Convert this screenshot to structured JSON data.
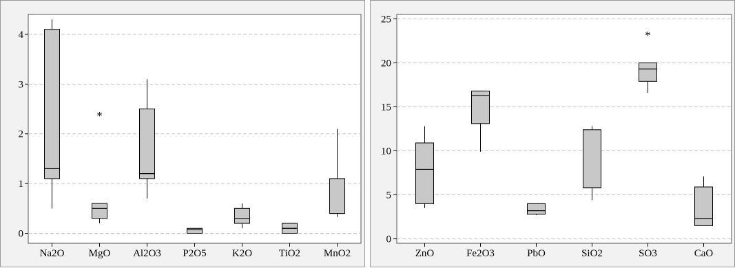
{
  "chart_data": [
    {
      "type": "boxplot",
      "title": "",
      "xlabel": "",
      "ylabel": "",
      "ylim": [
        -0.2,
        4.4
      ],
      "yticks": [
        0,
        1,
        2,
        3,
        4
      ],
      "grid": "horizontal-dashed",
      "box_color": "#c8c8c8",
      "categories": [
        "Na2O",
        "MgO",
        "Al2O3",
        "P2O5",
        "K2O",
        "TiO2",
        "MnO2"
      ],
      "boxes": [
        {
          "label": "Na2O",
          "whisker_low": 0.5,
          "q1": 1.1,
          "median": 1.3,
          "q3": 4.1,
          "whisker_high": 4.3,
          "outliers": []
        },
        {
          "label": "MgO",
          "whisker_low": 0.2,
          "q1": 0.3,
          "median": 0.5,
          "q3": 0.6,
          "whisker_high": 0.6,
          "outliers": [
            2.4
          ]
        },
        {
          "label": "Al2O3",
          "whisker_low": 0.7,
          "q1": 1.1,
          "median": 1.2,
          "q3": 2.5,
          "whisker_high": 3.1,
          "outliers": []
        },
        {
          "label": "P2O5",
          "whisker_low": 0.0,
          "q1": 0.0,
          "median": 0.07,
          "q3": 0.1,
          "whisker_high": 0.1,
          "outliers": []
        },
        {
          "label": "K2O",
          "whisker_low": 0.1,
          "q1": 0.2,
          "median": 0.3,
          "q3": 0.5,
          "whisker_high": 0.6,
          "outliers": []
        },
        {
          "label": "TiO2",
          "whisker_low": 0.0,
          "q1": 0.0,
          "median": 0.1,
          "q3": 0.2,
          "whisker_high": 0.2,
          "outliers": []
        },
        {
          "label": "MnO2",
          "whisker_low": 0.33,
          "q1": 0.4,
          "median": 0.4,
          "q3": 1.1,
          "whisker_high": 2.1,
          "outliers": []
        }
      ]
    },
    {
      "type": "boxplot",
      "title": "",
      "xlabel": "",
      "ylabel": "",
      "ylim": [
        -0.5,
        25.5
      ],
      "yticks": [
        0,
        5,
        10,
        15,
        20,
        25
      ],
      "grid": "horizontal-dashed",
      "box_color": "#c8c8c8",
      "categories": [
        "ZnO",
        "Fe2O3",
        "PbO",
        "SiO2",
        "SO3",
        "CaO"
      ],
      "boxes": [
        {
          "label": "ZnO",
          "whisker_low": 3.5,
          "q1": 4.0,
          "median": 7.9,
          "q3": 10.9,
          "whisker_high": 12.8,
          "outliers": []
        },
        {
          "label": "Fe2O3",
          "whisker_low": 9.9,
          "q1": 13.1,
          "median": 16.3,
          "q3": 16.8,
          "whisker_high": 16.8,
          "outliers": []
        },
        {
          "label": "PbO",
          "whisker_low": 2.7,
          "q1": 2.8,
          "median": 3.2,
          "q3": 4.0,
          "whisker_high": 4.0,
          "outliers": []
        },
        {
          "label": "SiO2",
          "whisker_low": 4.4,
          "q1": 5.8,
          "median": 5.8,
          "q3": 12.4,
          "whisker_high": 12.8,
          "outliers": []
        },
        {
          "label": "SO3",
          "whisker_low": 16.6,
          "q1": 17.9,
          "median": 19.3,
          "q3": 20.0,
          "whisker_high": 20.0,
          "outliers": [
            23.3
          ]
        },
        {
          "label": "CaO",
          "whisker_low": 1.5,
          "q1": 1.5,
          "median": 2.3,
          "q3": 5.9,
          "whisker_high": 7.1,
          "outliers": []
        }
      ]
    }
  ]
}
